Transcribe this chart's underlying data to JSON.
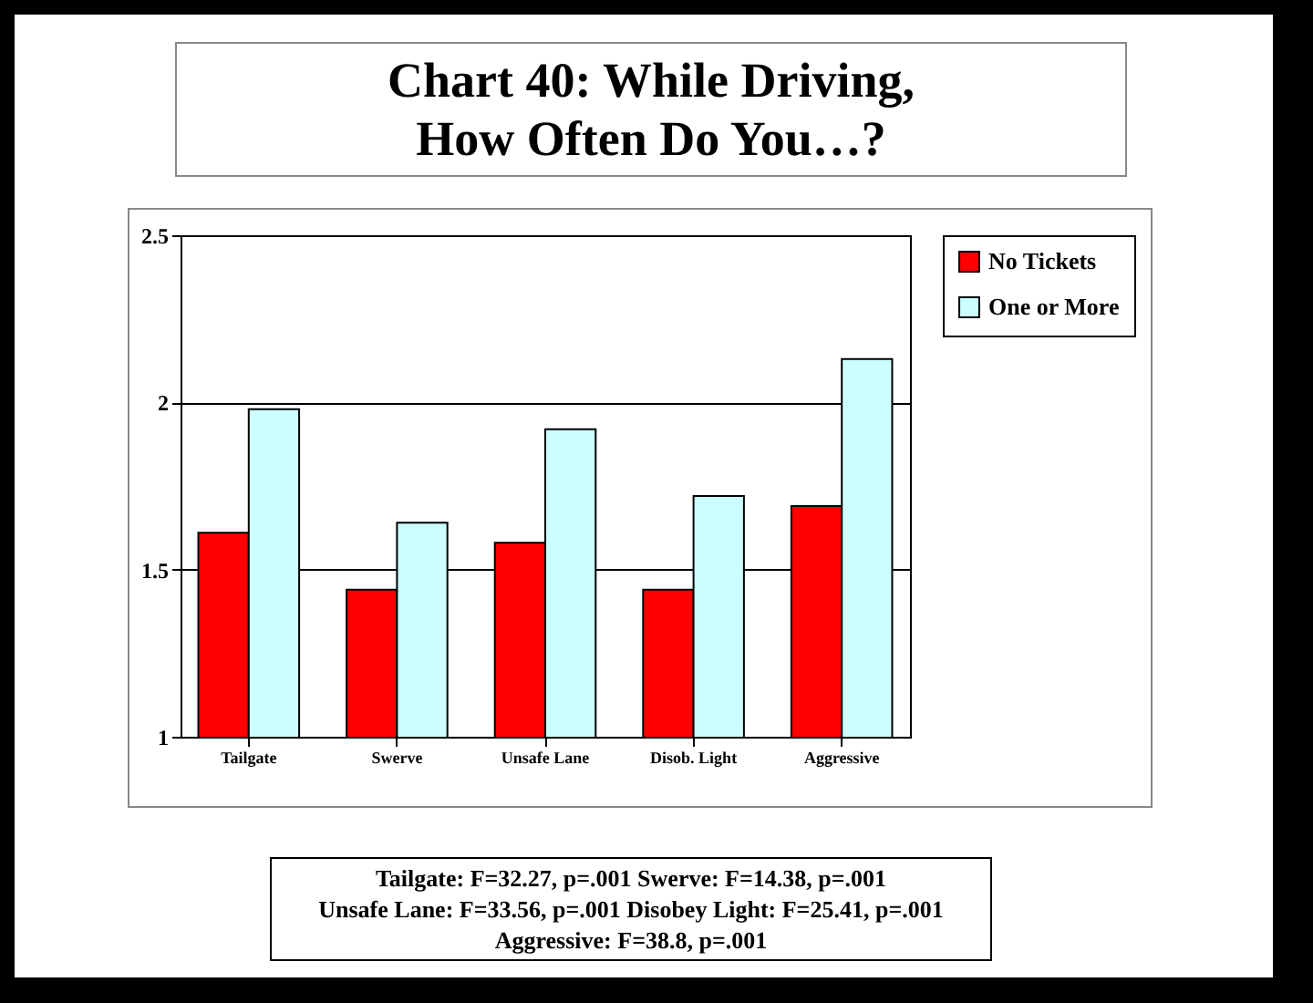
{
  "chart_data": {
    "type": "bar",
    "title": "Chart 40: While Driving,\nHow Often Do You…?",
    "categories": [
      "Tailgate",
      "Swerve",
      "Unsafe Lane",
      "Disob. Light",
      "Aggressive"
    ],
    "series": [
      {
        "name": "No Tickets",
        "color": "#ff0000",
        "values": [
          1.61,
          1.44,
          1.58,
          1.44,
          1.69
        ]
      },
      {
        "name": "One or More",
        "color": "#ccffff",
        "values": [
          1.98,
          1.64,
          1.92,
          1.72,
          2.13
        ]
      }
    ],
    "ylim": [
      1,
      2.5
    ],
    "yticks": [
      1,
      1.5,
      2,
      2.5
    ],
    "grid": "y",
    "legend": "right",
    "annotations": [
      "Tailgate: F=32.27, p=.001 Swerve: F=14.38, p=.001\nUnsafe Lane: F=33.56, p=.001 Disobey Light: F=25.41, p=.001\nAggressive: F=38.8, p=.001"
    ]
  }
}
